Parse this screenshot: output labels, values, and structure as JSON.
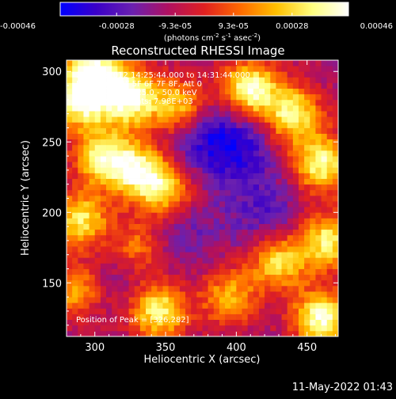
{
  "chart_data": {
    "type": "heatmap",
    "title": "Reconstructed RHESSI Image",
    "xlabel": "Heliocentric X (arcsec)",
    "ylabel": "Heliocentric Y (arcsec)",
    "xlim": [
      280,
      472
    ],
    "ylim": [
      112,
      308
    ],
    "xticks": [
      300,
      350,
      400,
      450
    ],
    "yticks": [
      150,
      200,
      250,
      300
    ],
    "colorbar": {
      "range": [
        -0.00046,
        0.00046
      ],
      "ticks": [
        {
          "value": -0.00046,
          "label": "-0.00046"
        },
        {
          "value": -0.00028,
          "label": "-0.00028"
        },
        {
          "value": -9.3e-05,
          "label": "-9.3e-05"
        },
        {
          "value": 9.3e-05,
          "label": "9.3e-05"
        },
        {
          "value": 0.00028,
          "label": "0.00028"
        },
        {
          "value": 0.00046,
          "label": "0.00046"
        }
      ],
      "unit_parts": [
        "(photons cm",
        "-2",
        " s",
        "-1",
        " asec",
        "-2",
        ")"
      ],
      "colormap": [
        "#0000ff",
        "#3a00c8",
        "#6a20b0",
        "#b01060",
        "#e02020",
        "#ff6a00",
        "#ffc000",
        "#ffff80",
        "#ffffff"
      ]
    },
    "annotations": {
      "time_range": "21-May-2012 14:25:44.000 to 14:31:44.000",
      "detectors": "Detectors: 3F 5F 6F 7F 8F, Att 0",
      "energy": "Energy Range: 25.0 - 50.0 keV",
      "clean": "Clean   Total counts: 7.98E+03",
      "peak": "Position of Peak = [326,282]"
    },
    "hot_regions": [
      {
        "x": 290,
        "y": 280,
        "value": 0.0004
      },
      {
        "x": 325,
        "y": 282,
        "value": 0.00046
      },
      {
        "x": 305,
        "y": 240,
        "value": 0.00036
      },
      {
        "x": 330,
        "y": 230,
        "value": 0.00034
      },
      {
        "x": 350,
        "y": 215,
        "value": 0.0003
      },
      {
        "x": 290,
        "y": 195,
        "value": 0.00032
      },
      {
        "x": 360,
        "y": 275,
        "value": 0.00028
      },
      {
        "x": 410,
        "y": 288,
        "value": 0.00042
      },
      {
        "x": 440,
        "y": 270,
        "value": 0.00035
      },
      {
        "x": 460,
        "y": 235,
        "value": 0.00038
      },
      {
        "x": 430,
        "y": 165,
        "value": 0.0003
      },
      {
        "x": 465,
        "y": 180,
        "value": 0.00034
      },
      {
        "x": 460,
        "y": 125,
        "value": 0.00042
      },
      {
        "x": 345,
        "y": 130,
        "value": 0.00036
      },
      {
        "x": 330,
        "y": 175,
        "value": 0.00018
      },
      {
        "x": 285,
        "y": 145,
        "value": 0.0002
      },
      {
        "x": 395,
        "y": 140,
        "value": 0.00022
      },
      {
        "x": 300,
        "y": 300,
        "value": 0.00038
      }
    ],
    "cold_regions": [
      {
        "x": 400,
        "y": 245,
        "value": -0.0003
      },
      {
        "x": 375,
        "y": 255,
        "value": -0.00025
      },
      {
        "x": 360,
        "y": 190,
        "value": -0.0002
      },
      {
        "x": 420,
        "y": 200,
        "value": -0.00022
      },
      {
        "x": 320,
        "y": 160,
        "value": -0.00015
      }
    ]
  },
  "footer": {
    "date": "11-May-2022 01:43"
  }
}
